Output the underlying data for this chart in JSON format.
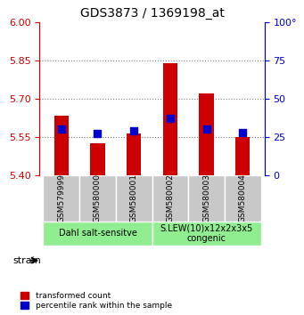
{
  "title": "GDS3873 / 1369198_at",
  "samples": [
    "GSM579999",
    "GSM580000",
    "GSM580001",
    "GSM580002",
    "GSM580003",
    "GSM580004"
  ],
  "red_values": [
    5.635,
    5.525,
    5.565,
    5.84,
    5.72,
    5.55
  ],
  "blue_values_pct": [
    30,
    27,
    29,
    37,
    30,
    28
  ],
  "y_min": 5.4,
  "y_max": 6.0,
  "y_ticks": [
    5.4,
    5.55,
    5.7,
    5.85,
    6.0
  ],
  "y_right_ticks": [
    0,
    25,
    50,
    75,
    100
  ],
  "groups": [
    {
      "label": "Dahl salt-sensitve",
      "start": 0,
      "end": 2,
      "color": "#90ee90"
    },
    {
      "label": "S.LEW(10)x12x2x3x5\ncongenic",
      "start": 3,
      "end": 5,
      "color": "#90ee90"
    }
  ],
  "group_bg_color": "#c8c8c8",
  "bar_color": "#cc0000",
  "dot_color": "#0000cc",
  "bar_width": 0.4,
  "dot_size": 40,
  "xlabel": "strain",
  "legend_red": "transformed count",
  "legend_blue": "percentile rank within the sample",
  "left_axis_color": "#cc0000",
  "right_axis_color": "#0000cc",
  "dotted_line_color": "#808080",
  "base_value": 5.4
}
